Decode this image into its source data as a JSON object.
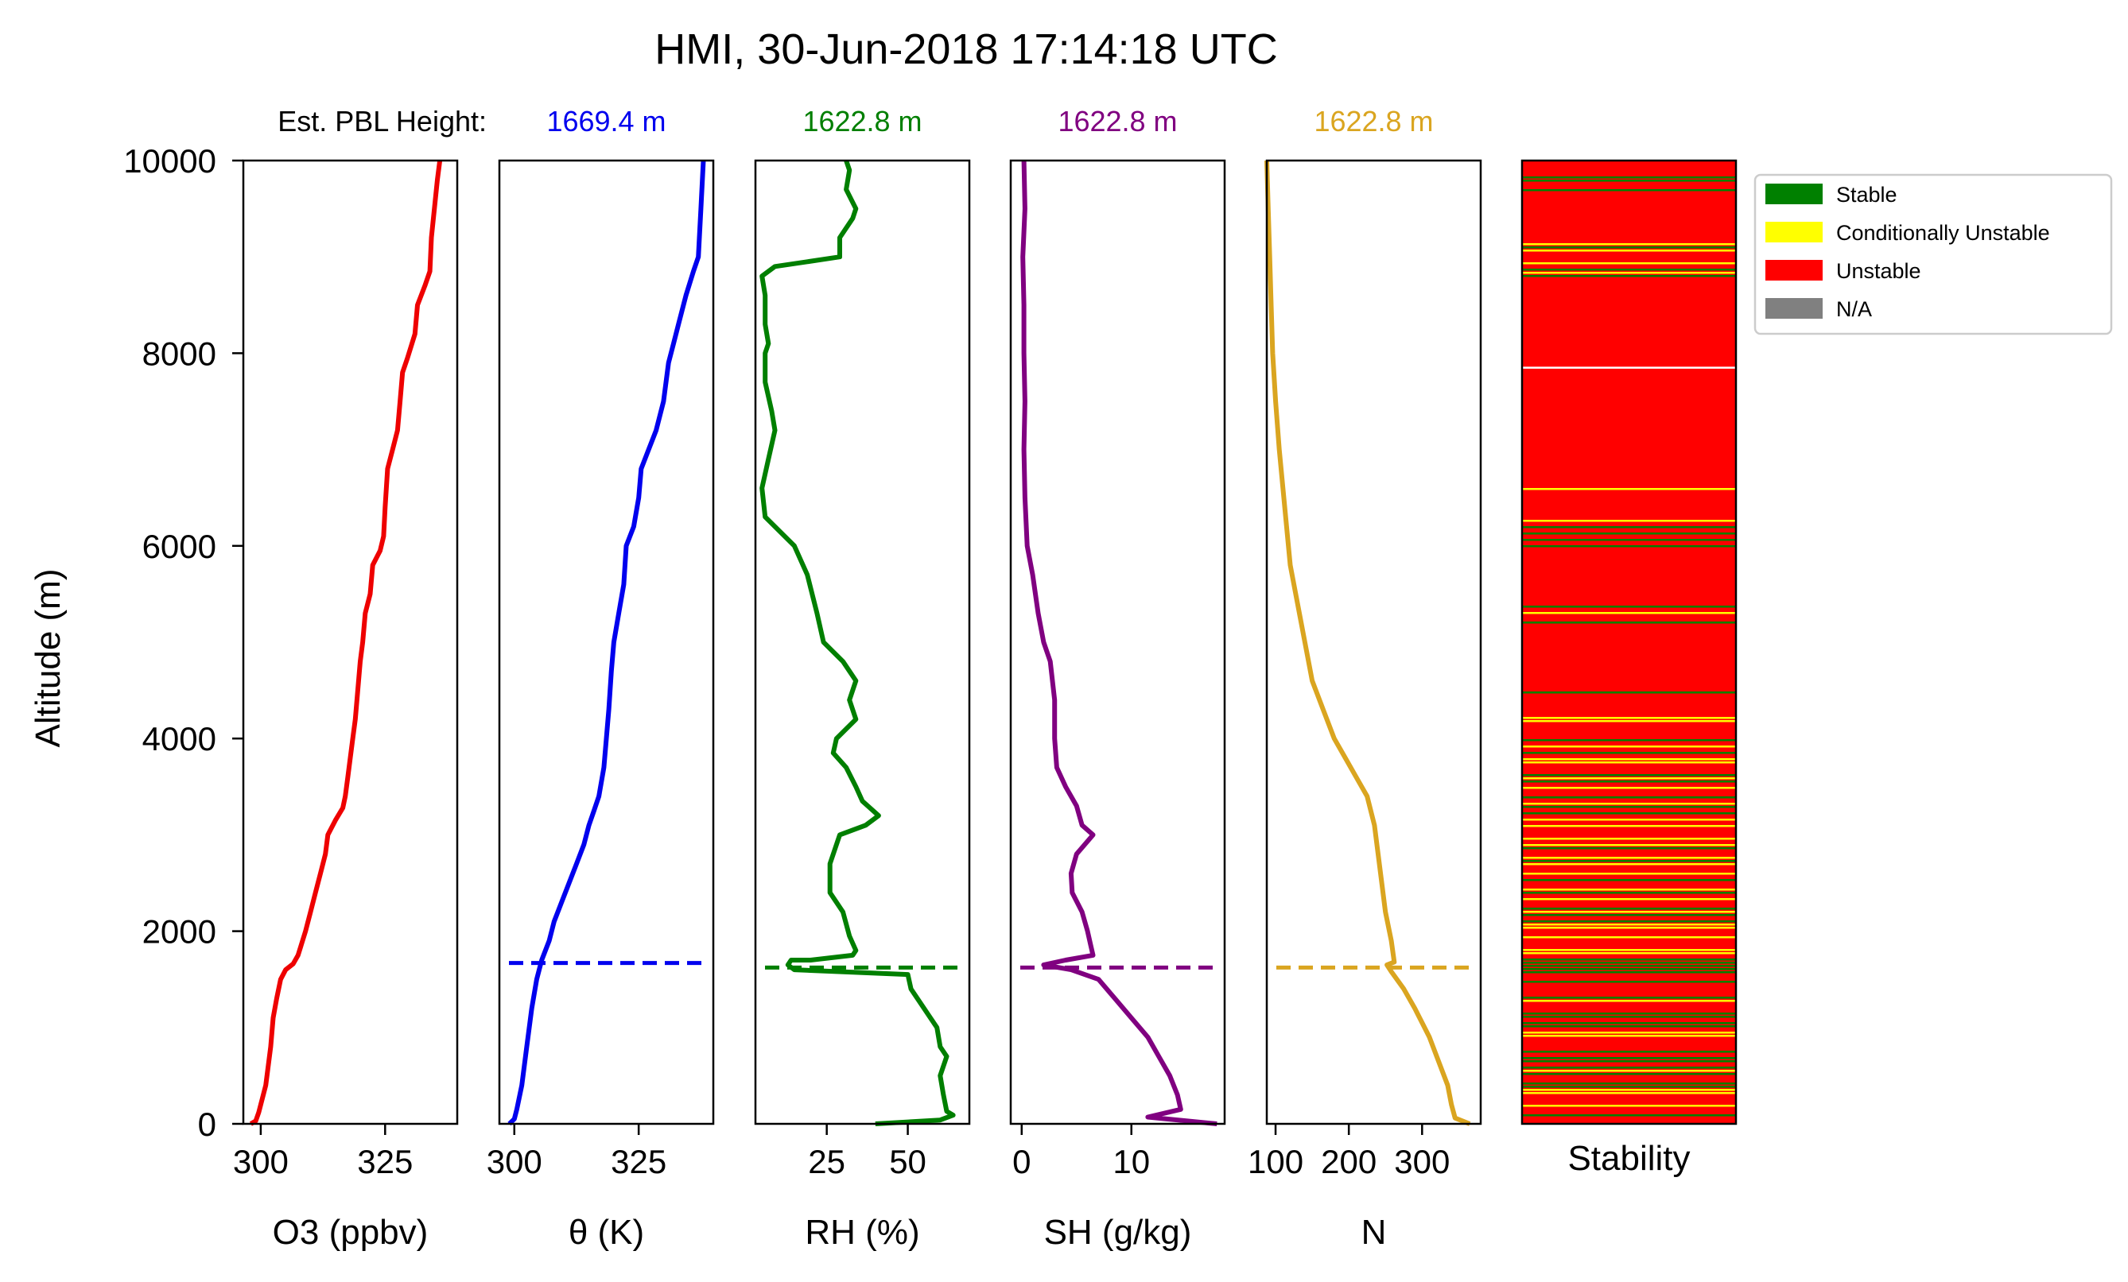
{
  "chart_data": {
    "type": "line",
    "title": "HMI, 30-Jun-2018 17:14:18 UTC",
    "pbl_label": "Est. PBL Height:",
    "ylabel": "Altitude (m)",
    "ylim": [
      0,
      10000
    ],
    "yticks": [
      0,
      2000,
      4000,
      6000,
      8000,
      10000
    ],
    "panels": [
      {
        "key": "o3",
        "xlabel": "O3 (ppbv)",
        "color": "#ee0000",
        "xlim": [
          296.5,
          339.5
        ],
        "xticks": [
          300,
          325
        ],
        "pbl": null,
        "pbl_label": "",
        "profile": [
          [
            298,
            0
          ],
          [
            299,
            30
          ],
          [
            299.6,
            120
          ],
          [
            301,
            400
          ],
          [
            302,
            800
          ],
          [
            302.5,
            1100
          ],
          [
            303.2,
            1300
          ],
          [
            304,
            1500
          ],
          [
            305,
            1600
          ],
          [
            306.5,
            1660
          ],
          [
            307.5,
            1750
          ],
          [
            309,
            2000
          ],
          [
            310,
            2200
          ],
          [
            311,
            2400
          ],
          [
            312,
            2600
          ],
          [
            313,
            2800
          ],
          [
            313.5,
            3000
          ],
          [
            315,
            3150
          ],
          [
            316.5,
            3280
          ],
          [
            317,
            3400
          ],
          [
            317.5,
            3600
          ],
          [
            318,
            3800
          ],
          [
            318.5,
            4000
          ],
          [
            319,
            4200
          ],
          [
            319.5,
            4500
          ],
          [
            320,
            4800
          ],
          [
            320.5,
            5000
          ],
          [
            321,
            5300
          ],
          [
            322,
            5500
          ],
          [
            322.5,
            5800
          ],
          [
            324,
            5950
          ],
          [
            324.7,
            6100
          ],
          [
            325,
            6400
          ],
          [
            325.5,
            6800
          ],
          [
            326.5,
            7000
          ],
          [
            327.5,
            7200
          ],
          [
            328,
            7500
          ],
          [
            328.5,
            7800
          ],
          [
            329.5,
            7950
          ],
          [
            331,
            8200
          ],
          [
            331.5,
            8500
          ],
          [
            333,
            8700
          ],
          [
            334,
            8850
          ],
          [
            334.3,
            9200
          ],
          [
            335.5,
            9800
          ],
          [
            336,
            10000
          ]
        ]
      },
      {
        "key": "theta",
        "xlabel": "θ (K)",
        "color": "#0000ee",
        "xlim": [
          297,
          340
        ],
        "xticks": [
          300,
          325
        ],
        "pbl": 1669.4,
        "pbl_label": "1669.4 m",
        "profile": [
          [
            299,
            0
          ],
          [
            300,
            50
          ],
          [
            300.5,
            150
          ],
          [
            301.5,
            400
          ],
          [
            302.5,
            800
          ],
          [
            303.5,
            1200
          ],
          [
            304.5,
            1500
          ],
          [
            305.5,
            1700
          ],
          [
            307,
            1900
          ],
          [
            308,
            2100
          ],
          [
            309.5,
            2300
          ],
          [
            311,
            2500
          ],
          [
            312.5,
            2700
          ],
          [
            314,
            2900
          ],
          [
            315,
            3100
          ],
          [
            316,
            3250
          ],
          [
            317,
            3400
          ],
          [
            318,
            3700
          ],
          [
            318.5,
            4000
          ],
          [
            319,
            4300
          ],
          [
            319.5,
            4700
          ],
          [
            320,
            5000
          ],
          [
            321,
            5300
          ],
          [
            322,
            5600
          ],
          [
            322.5,
            6000
          ],
          [
            324,
            6200
          ],
          [
            325,
            6500
          ],
          [
            325.5,
            6800
          ],
          [
            327,
            7000
          ],
          [
            328.5,
            7200
          ],
          [
            330,
            7500
          ],
          [
            331,
            7900
          ],
          [
            332,
            8100
          ],
          [
            333,
            8300
          ],
          [
            334.5,
            8600
          ],
          [
            336,
            8850
          ],
          [
            337,
            9000
          ],
          [
            337.5,
            9500
          ],
          [
            338,
            10000
          ]
        ]
      },
      {
        "key": "rh",
        "xlabel": "RH (%)",
        "color": "#007f00",
        "xlim": [
          3,
          69
        ],
        "xticks": [
          25,
          50
        ],
        "pbl": 1622.8,
        "pbl_label": "1622.8 m",
        "profile": [
          [
            40,
            0
          ],
          [
            60,
            40
          ],
          [
            64,
            90
          ],
          [
            62,
            130
          ],
          [
            61,
            300
          ],
          [
            60,
            500
          ],
          [
            62,
            700
          ],
          [
            60,
            800
          ],
          [
            59,
            1000
          ],
          [
            55,
            1200
          ],
          [
            51,
            1400
          ],
          [
            50,
            1550
          ],
          [
            15,
            1600
          ],
          [
            13,
            1650
          ],
          [
            14,
            1700
          ],
          [
            20,
            1700
          ],
          [
            33,
            1750
          ],
          [
            34,
            1800
          ],
          [
            32,
            1950
          ],
          [
            30,
            2200
          ],
          [
            26,
            2400
          ],
          [
            26,
            2700
          ],
          [
            29,
            3000
          ],
          [
            37,
            3100
          ],
          [
            41,
            3200
          ],
          [
            36,
            3350
          ],
          [
            34,
            3500
          ],
          [
            31,
            3700
          ],
          [
            27,
            3850
          ],
          [
            28,
            4000
          ],
          [
            34,
            4200
          ],
          [
            32,
            4400
          ],
          [
            34,
            4600
          ],
          [
            30,
            4800
          ],
          [
            24,
            5000
          ],
          [
            22,
            5300
          ],
          [
            19,
            5700
          ],
          [
            15,
            6000
          ],
          [
            6,
            6300
          ],
          [
            5,
            6600
          ],
          [
            7,
            6900
          ],
          [
            9,
            7200
          ],
          [
            8,
            7400
          ],
          [
            6,
            7700
          ],
          [
            6,
            8000
          ],
          [
            7,
            8100
          ],
          [
            6,
            8300
          ],
          [
            6,
            8600
          ],
          [
            5,
            8800
          ],
          [
            9,
            8900
          ],
          [
            19,
            8950
          ],
          [
            29,
            9000
          ],
          [
            29,
            9200
          ],
          [
            33,
            9400
          ],
          [
            34,
            9500
          ],
          [
            31,
            9700
          ],
          [
            32,
            9900
          ],
          [
            31,
            10000
          ]
        ]
      },
      {
        "key": "sh",
        "xlabel": "SH (g/kg)",
        "color": "#800080",
        "xlim": [
          -1,
          18.5
        ],
        "xticks": [
          0,
          10
        ],
        "pbl": 1622.8,
        "pbl_label": "1622.8 m",
        "profile": [
          [
            17.8,
            0
          ],
          [
            11.5,
            70
          ],
          [
            14.5,
            150
          ],
          [
            14.2,
            300
          ],
          [
            13.5,
            500
          ],
          [
            12.5,
            700
          ],
          [
            11.5,
            900
          ],
          [
            10,
            1100
          ],
          [
            8.5,
            1300
          ],
          [
            7,
            1500
          ],
          [
            4.5,
            1600
          ],
          [
            2,
            1650
          ],
          [
            4,
            1700
          ],
          [
            6.5,
            1750
          ],
          [
            6.3,
            1850
          ],
          [
            6,
            2000
          ],
          [
            5.5,
            2200
          ],
          [
            4.6,
            2400
          ],
          [
            4.5,
            2600
          ],
          [
            5,
            2800
          ],
          [
            6.5,
            3000
          ],
          [
            5.5,
            3100
          ],
          [
            5,
            3300
          ],
          [
            4,
            3500
          ],
          [
            3.2,
            3700
          ],
          [
            3,
            4000
          ],
          [
            3,
            4400
          ],
          [
            2.6,
            4800
          ],
          [
            2,
            5000
          ],
          [
            1.5,
            5300
          ],
          [
            1,
            5700
          ],
          [
            0.5,
            6000
          ],
          [
            0.3,
            6500
          ],
          [
            0.2,
            7000
          ],
          [
            0.3,
            7500
          ],
          [
            0.2,
            8000
          ],
          [
            0.2,
            8500
          ],
          [
            0.1,
            9000
          ],
          [
            0.3,
            9500
          ],
          [
            0.2,
            10000
          ]
        ]
      },
      {
        "key": "n",
        "xlabel": "N",
        "color": "#daa520",
        "xlim": [
          88,
          380
        ],
        "xticks": [
          100,
          200,
          300
        ],
        "pbl": 1622.8,
        "pbl_label": "1622.8 m",
        "profile": [
          [
            365,
            0
          ],
          [
            345,
            60
          ],
          [
            340,
            200
          ],
          [
            335,
            400
          ],
          [
            325,
            600
          ],
          [
            310,
            900
          ],
          [
            290,
            1200
          ],
          [
            275,
            1400
          ],
          [
            258,
            1580
          ],
          [
            252,
            1650
          ],
          [
            262,
            1680
          ],
          [
            258,
            1900
          ],
          [
            250,
            2200
          ],
          [
            245,
            2500
          ],
          [
            240,
            2800
          ],
          [
            235,
            3100
          ],
          [
            225,
            3400
          ],
          [
            210,
            3600
          ],
          [
            195,
            3800
          ],
          [
            180,
            4000
          ],
          [
            165,
            4300
          ],
          [
            150,
            4600
          ],
          [
            140,
            5000
          ],
          [
            130,
            5400
          ],
          [
            120,
            5800
          ],
          [
            115,
            6200
          ],
          [
            110,
            6600
          ],
          [
            105,
            7000
          ],
          [
            100,
            7500
          ],
          [
            96,
            8000
          ],
          [
            94,
            8500
          ],
          [
            92,
            9000
          ],
          [
            90,
            9500
          ],
          [
            88,
            10000
          ]
        ]
      }
    ],
    "stability": {
      "xlabel": "Stability",
      "colors": {
        "stable": "#008000",
        "conditionally_unstable": "#ffff00",
        "unstable": "#ff0000",
        "na": "#808080"
      }
    },
    "legend": {
      "placement": "upper-right, outside",
      "entries": [
        {
          "label": "Stable",
          "color": "#008000"
        },
        {
          "label": "Conditionally Unstable",
          "color": "#ffff00"
        },
        {
          "label": "Unstable",
          "color": "#ff0000"
        },
        {
          "label": "N/A",
          "color": "#808080"
        }
      ]
    }
  }
}
